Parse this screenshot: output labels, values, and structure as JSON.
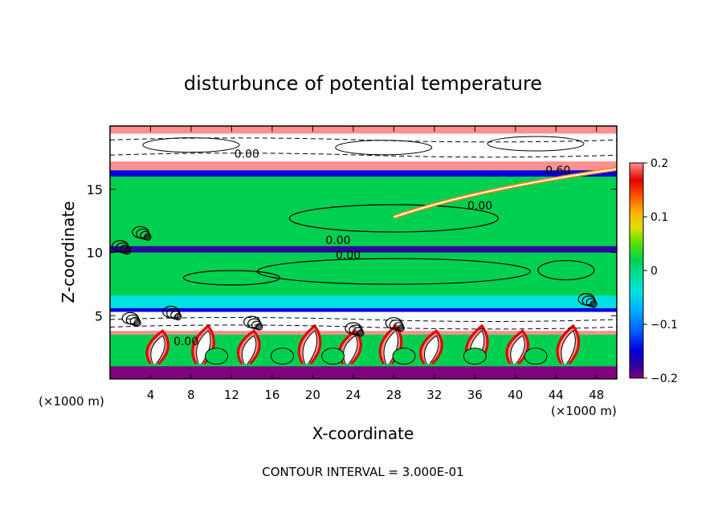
{
  "chart_data": {
    "type": "heatmap",
    "title": "disturbunce of potential temperature",
    "xlabel": "X-coordinate",
    "ylabel": "Z-coordinate",
    "x_unit_label": "(×1000 m)",
    "y_unit_label": "(×1000 m)",
    "footer": "CONTOUR INTERVAL = 3.000E-01",
    "xlim": [
      0,
      50
    ],
    "ylim": [
      0,
      20
    ],
    "x_ticks": [
      4,
      8,
      12,
      16,
      20,
      24,
      28,
      32,
      36,
      40,
      44,
      48
    ],
    "y_ticks": [
      5,
      10,
      15
    ],
    "colorbar": {
      "range": [
        -0.2,
        0.2
      ],
      "ticks": [
        0.2,
        0.1,
        0,
        -0.1,
        -0.2
      ],
      "tick_labels": [
        "0.2",
        "0.1",
        "0",
        "−0.1",
        "−0.2"
      ],
      "colors": [
        "#800080",
        "#3000a0",
        "#0000e0",
        "#0040ff",
        "#0080ff",
        "#00c0ff",
        "#00e0e0",
        "#00e0a0",
        "#00d050",
        "#40e000",
        "#a0e000",
        "#e0e000",
        "#ffc000",
        "#ff8000",
        "#ff3000",
        "#e00000",
        "#ff9090"
      ]
    },
    "contour_labels": [
      {
        "text": "0.00",
        "x": 13.5,
        "z": 17.8
      },
      {
        "text": "0.60",
        "x": 44.2,
        "z": 16.5
      },
      {
        "text": "0.00",
        "x": 36.5,
        "z": 13.7
      },
      {
        "text": "0.00",
        "x": 22.5,
        "z": 11.0
      },
      {
        "text": "0.00",
        "x": 23.5,
        "z": 9.8
      },
      {
        "text": "0.00",
        "x": 7.5,
        "z": 3.0
      }
    ],
    "bands": [
      {
        "z0": 0.0,
        "z1": 1.0,
        "value": -0.2
      },
      {
        "z0": 1.0,
        "z1": 3.5,
        "value": 0.0
      },
      {
        "z0": 3.5,
        "z1": 5.0,
        "value": 0.2
      },
      {
        "z0": 5.0,
        "z1": 5.6,
        "value": -0.15
      },
      {
        "z0": 5.6,
        "z1": 6.6,
        "value": -0.05
      },
      {
        "z0": 6.6,
        "z1": 10.0,
        "value": 0.0
      },
      {
        "z0": 10.0,
        "z1": 10.5,
        "value": -0.17
      },
      {
        "z0": 10.5,
        "z1": 16.0,
        "value": 0.0
      },
      {
        "z0": 16.0,
        "z1": 16.5,
        "value": -0.15
      },
      {
        "z0": 16.5,
        "z1": 20.0,
        "value": 0.2
      }
    ]
  }
}
